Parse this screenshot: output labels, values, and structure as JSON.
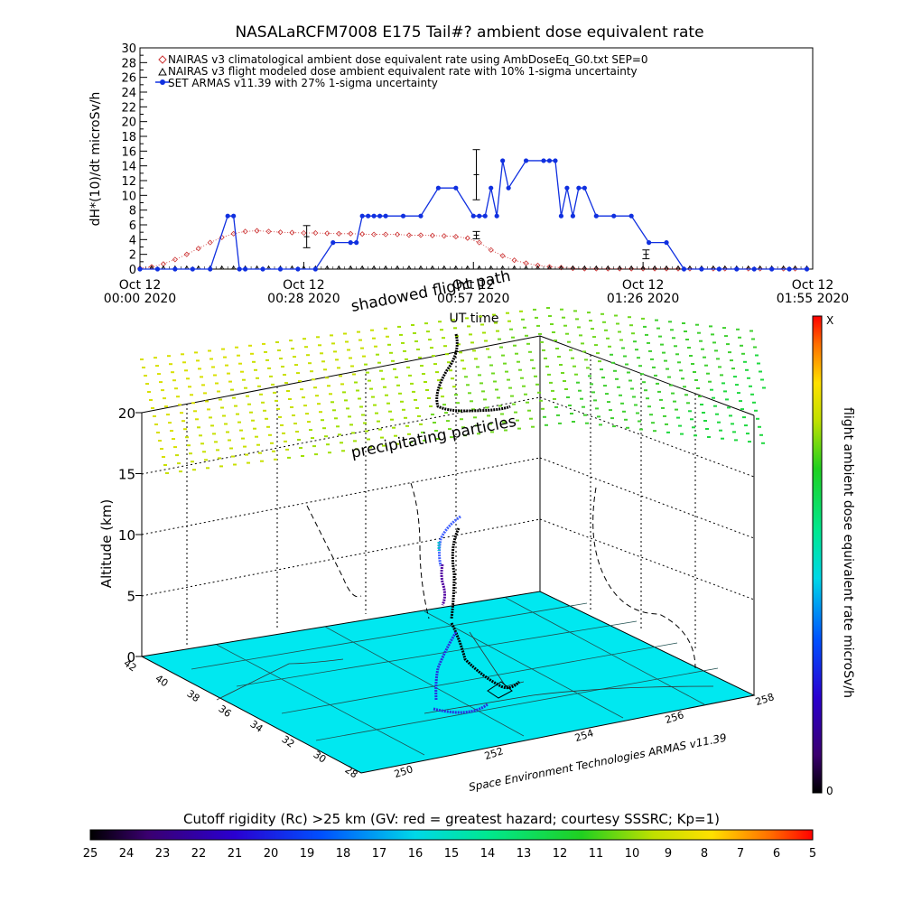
{
  "chart_data": [
    {
      "type": "line",
      "title": "NASALaRCFM7008  E175 Tail#? ambient dose equivalent rate",
      "ylabel": "dH*(10)/dt microSv/h",
      "xlabel": "UT time",
      "ylim": [
        0,
        30
      ],
      "yticks": [
        "0",
        "2",
        "4",
        "6",
        "8",
        "10",
        "12",
        "14",
        "16",
        "18",
        "20",
        "22",
        "24",
        "26",
        "28",
        "30"
      ],
      "xlim_minutes": [
        0,
        115
      ],
      "xticks": [
        {
          "minute": 0,
          "line1": "Oct 12",
          "line2": "00:00 2020"
        },
        {
          "minute": 28,
          "line1": "Oct 12",
          "line2": "00:28 2020"
        },
        {
          "minute": 57,
          "line1": "Oct 12",
          "line2": "00:57 2020"
        },
        {
          "minute": 86,
          "line1": "Oct 12",
          "line2": "01:26 2020"
        },
        {
          "minute": 115,
          "line1": "Oct 12",
          "line2": "01:55 2020"
        }
      ],
      "legend": [
        {
          "label": "NAIRAS v3 climatological ambient dose equivalent rate using AmbDoseEq_G0.txt SEP=0",
          "color": "#cc3333",
          "marker": "diamond"
        },
        {
          "label": "NAIRAS v3 flight modeled dose ambient equivalent rate with 10% 1-sigma uncertainty",
          "color": "#000000",
          "marker": "triangle"
        },
        {
          "label": "SET ARMAS v11.39 with 27% 1-sigma uncertainty",
          "color": "#1030e0",
          "marker": "dot"
        }
      ],
      "series": [
        {
          "name": "NAIRAS v3 climatological ambient dose equivalent rate using AmbDoseEq_G0.txt SEP=0",
          "x": [
            0,
            2,
            4,
            6,
            8,
            10,
            12,
            14,
            16,
            18,
            20,
            22,
            24,
            26,
            28,
            30,
            32,
            34,
            36,
            38,
            40,
            42,
            44,
            46,
            48,
            50,
            52,
            54,
            56,
            58,
            60,
            62,
            64,
            66,
            68,
            70,
            72,
            74,
            76,
            78,
            80,
            82,
            84,
            86,
            88,
            90,
            92,
            94,
            96,
            98,
            100,
            102,
            104,
            106,
            108,
            110,
            112,
            114
          ],
          "y": [
            0.1,
            0.3,
            0.7,
            1.3,
            2.0,
            2.8,
            3.6,
            4.3,
            4.8,
            5.1,
            5.2,
            5.1,
            5.0,
            4.95,
            4.9,
            4.9,
            4.85,
            4.8,
            4.8,
            4.75,
            4.7,
            4.7,
            4.7,
            4.6,
            4.6,
            4.55,
            4.5,
            4.4,
            4.2,
            3.6,
            2.6,
            1.8,
            1.2,
            0.8,
            0.5,
            0.3,
            0.2,
            0.1,
            0.05,
            0.05,
            0.05,
            0.05,
            0.05,
            0.05,
            0.05,
            0.05,
            0.05,
            0.05,
            0.05,
            0.05,
            0.05,
            0.05,
            0.05,
            0.05,
            0.05,
            0.05,
            0.05,
            0.05
          ]
        },
        {
          "name": "NAIRAS v3 flight modeled dose ambient equivalent rate with 10% 1-sigma uncertainty",
          "x": [
            0,
            2,
            4,
            6,
            8,
            10,
            12,
            14,
            16,
            18,
            20,
            22,
            24,
            26,
            28,
            30,
            32,
            34,
            36,
            38,
            40,
            42,
            44,
            46,
            48,
            50,
            52,
            54,
            56,
            58,
            60,
            62,
            64,
            66,
            68,
            70,
            72,
            74,
            76,
            78,
            80,
            82,
            84,
            86,
            88,
            90,
            92,
            94,
            96,
            98,
            100,
            102,
            104,
            106,
            108,
            110,
            112,
            114
          ],
          "y": [
            0,
            0,
            0,
            0,
            0,
            0,
            0,
            0,
            0,
            0,
            0,
            0,
            0,
            0,
            0,
            0,
            0,
            0,
            0,
            0,
            0,
            0,
            0,
            0,
            0,
            0,
            0,
            0,
            0,
            0,
            0,
            0,
            0,
            0,
            0,
            0,
            0,
            0,
            0,
            0,
            0,
            0,
            0,
            0,
            0,
            0,
            0,
            0,
            0,
            0,
            0,
            0,
            0,
            0,
            0,
            0,
            0,
            0
          ],
          "errorbars": [
            {
              "x": 28.5,
              "y": 4.4,
              "err": 1.5
            },
            {
              "x": 57.5,
              "y": 4.6,
              "err": 0.5
            },
            {
              "x": 86.5,
              "y": 2.0,
              "err": 0.6
            }
          ]
        },
        {
          "name": "SET ARMAS v11.39 with 27% 1-sigma uncertainty",
          "x": [
            0,
            3,
            6,
            9,
            12,
            15,
            16,
            17,
            18,
            21,
            24,
            27,
            30,
            33,
            36,
            37,
            38,
            39,
            40,
            41,
            42,
            45,
            48,
            51,
            54,
            57,
            58,
            59,
            60,
            61,
            62,
            63,
            66,
            69,
            70,
            71,
            72,
            73,
            74,
            75,
            76,
            78,
            81,
            84,
            87,
            90,
            93,
            96,
            99,
            102,
            105,
            108,
            111,
            114
          ],
          "y": [
            0,
            0,
            0,
            0,
            0,
            7.2,
            7.2,
            0,
            0,
            0,
            0,
            0,
            0,
            3.6,
            3.6,
            3.6,
            7.2,
            7.2,
            7.2,
            7.2,
            7.2,
            7.2,
            7.2,
            11,
            11,
            7.2,
            7.2,
            7.2,
            11,
            7.2,
            14.7,
            11,
            14.7,
            14.7,
            14.7,
            14.7,
            7.2,
            11,
            7.2,
            11,
            11,
            7.2,
            7.2,
            7.2,
            3.6,
            3.6,
            0,
            0,
            0,
            0,
            0,
            0,
            0,
            0
          ],
          "errorbars": [
            {
              "x": 57.5,
              "y": 12.8,
              "err": 3.4
            }
          ]
        }
      ]
    },
    {
      "type": "scatter",
      "subtype": "3d-trajectory",
      "zlabel": "Altitude (km)",
      "zticks": [
        "0",
        "5",
        "10",
        "15",
        "20"
      ],
      "lat_ticks": [
        "42",
        "40",
        "38",
        "36",
        "34",
        "32",
        "30",
        "28"
      ],
      "lon_ticks": [
        "250",
        "252",
        "254",
        "256",
        "258"
      ],
      "annotations": [
        "shadowed flight path",
        "precipitating particles"
      ],
      "credit": "Space Environment Technologies ARMAS v11.39",
      "colorbar_right": {
        "label": "flight ambient dose equivalent rate microSv/h",
        "max_label": "X",
        "min_label": "0"
      },
      "colorbar_bottom": {
        "label": "Cutoff rigidity (Rc) >25 km (GV: red = greatest hazard; courtesy SSSRC; Kp=1)",
        "ticks": [
          "25",
          "24",
          "23",
          "22",
          "21",
          "20",
          "19",
          "18",
          "17",
          "16",
          "15",
          "14",
          "13",
          "12",
          "11",
          "10",
          "9",
          "8",
          "7",
          "6",
          "5"
        ]
      },
      "floor_color": "#00e8f0"
    }
  ]
}
